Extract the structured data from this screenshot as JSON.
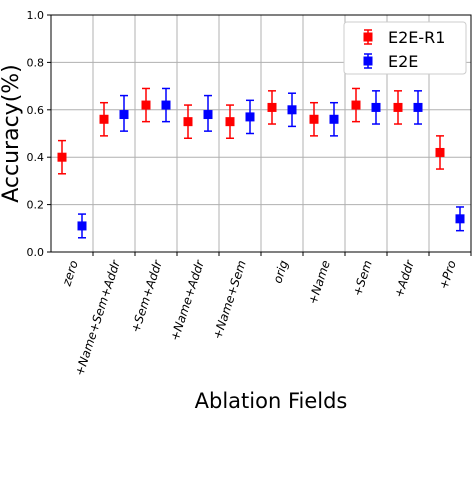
{
  "chart_data": {
    "type": "scatter",
    "title": "",
    "xlabel": "Ablation Fields",
    "ylabel": "Accuracy(%)",
    "ylim": [
      0.0,
      1.0
    ],
    "yticks": [
      "0.0",
      "0.2",
      "0.4",
      "0.6",
      "0.8",
      "1.0"
    ],
    "grid": true,
    "legend_position": "top-right",
    "categories": [
      "zero",
      "+Name+Sem+Addr",
      "+Sem+Addr",
      "+Name+Addr",
      "+Name+Sem",
      "orig",
      "+Name",
      "+Sem",
      "+Addr",
      "+Pro"
    ],
    "series": [
      {
        "name": "E2E-R1",
        "color": "#ff0000",
        "marker": "square",
        "values": [
          0.4,
          0.56,
          0.62,
          0.55,
          0.55,
          0.61,
          0.56,
          0.62,
          0.61,
          0.42
        ],
        "err_low": [
          0.33,
          0.49,
          0.55,
          0.48,
          0.48,
          0.54,
          0.49,
          0.55,
          0.54,
          0.35
        ],
        "err_high": [
          0.47,
          0.63,
          0.69,
          0.62,
          0.62,
          0.68,
          0.63,
          0.69,
          0.68,
          0.49
        ]
      },
      {
        "name": "E2E",
        "color": "#0000ff",
        "marker": "square",
        "values": [
          0.11,
          0.58,
          0.62,
          0.58,
          0.57,
          0.6,
          0.56,
          0.61,
          0.61,
          0.14
        ],
        "err_low": [
          0.06,
          0.51,
          0.55,
          0.51,
          0.5,
          0.53,
          0.49,
          0.54,
          0.54,
          0.09
        ],
        "err_high": [
          0.16,
          0.66,
          0.69,
          0.66,
          0.64,
          0.67,
          0.63,
          0.68,
          0.68,
          0.19
        ]
      }
    ]
  }
}
